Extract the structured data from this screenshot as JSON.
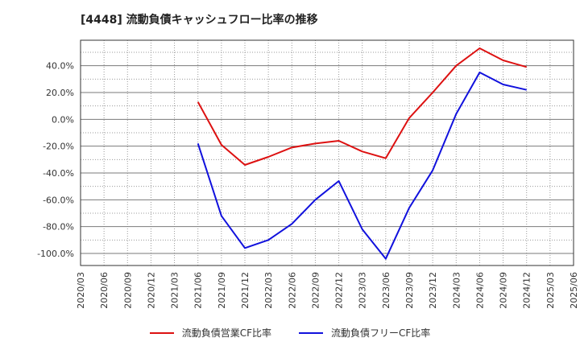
{
  "chart_data": {
    "type": "line",
    "title": "[4448]  流動負債キャッシュフロー比率の推移",
    "x": [
      "2020/03",
      "2020/06",
      "2020/09",
      "2020/12",
      "2021/03",
      "2021/06",
      "2021/09",
      "2021/12",
      "2022/03",
      "2022/06",
      "2022/09",
      "2022/12",
      "2023/03",
      "2023/06",
      "2023/09",
      "2023/12",
      "2024/03",
      "2024/06",
      "2024/09",
      "2024/12",
      "2025/03",
      "2025/06"
    ],
    "y_ticks": [
      40.0,
      20.0,
      0.0,
      -20.0,
      -40.0,
      -60.0,
      -80.0,
      -100.0
    ],
    "y_tick_labels": [
      "40.0%",
      "20.0%",
      "0.0%",
      "-20.0%",
      "-40.0%",
      "-60.0%",
      "-80.0%",
      "-100.0%"
    ],
    "ylim": [
      -109,
      59
    ],
    "grid": true,
    "legend_position": "bottom",
    "series": [
      {
        "name": "流動負債営業CF比率",
        "color": "#dd1111",
        "values": [
          null,
          null,
          null,
          null,
          null,
          13,
          -19,
          -34,
          -28,
          -21,
          -18,
          -16,
          -24,
          -29,
          1,
          20,
          40,
          53,
          44,
          39,
          null,
          null
        ]
      },
      {
        "name": "流動負債フリーCF比率",
        "color": "#1111dd",
        "values": [
          null,
          null,
          null,
          null,
          null,
          -18,
          -72,
          -96,
          -90,
          -78,
          -60,
          -46,
          -82,
          -104,
          -66,
          -38,
          4,
          35,
          26,
          22,
          null,
          null
        ]
      }
    ]
  }
}
